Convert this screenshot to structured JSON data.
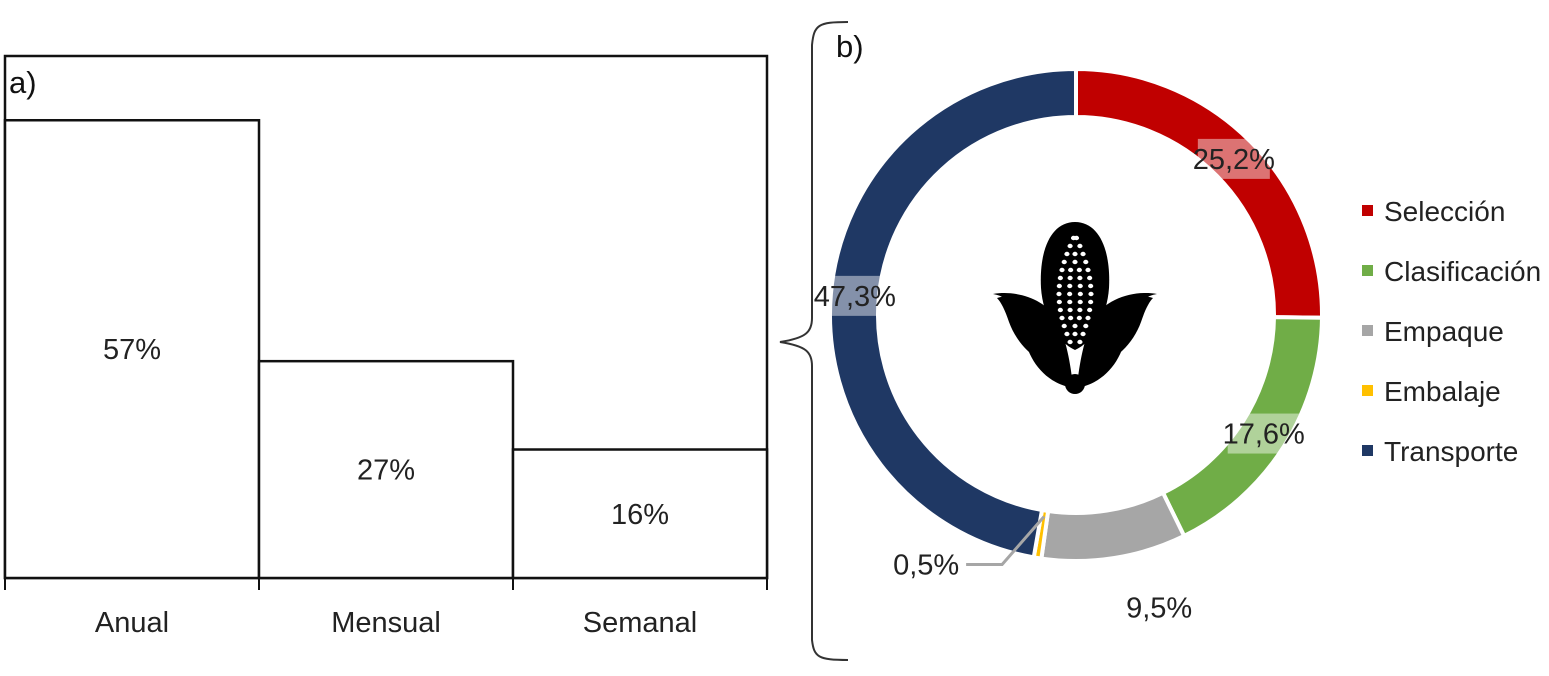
{
  "chart_data": [
    {
      "type": "bar",
      "panel_label": "a)",
      "categories": [
        "Anual",
        "Mensual",
        "Semanal"
      ],
      "values": [
        57,
        27,
        16
      ],
      "value_labels": [
        "57%",
        "27%",
        "16%"
      ],
      "ylim": [
        0,
        65
      ],
      "grid": false
    },
    {
      "type": "pie",
      "style": "donut",
      "panel_label": "b)",
      "labels": [
        "Selección",
        "Clasificación",
        "Empaque",
        "Embalaje",
        "Transporte"
      ],
      "values": [
        25.2,
        17.6,
        9.5,
        0.5,
        47.3
      ],
      "value_labels": [
        "25,2%",
        "17,6%",
        "9,5%",
        "0,5%",
        "47,3%"
      ],
      "colors": [
        "#c00000",
        "#70ad47",
        "#a6a6a6",
        "#ffc000",
        "#1f3864"
      ],
      "legend_position": "right",
      "center_icon": "corn-icon"
    }
  ]
}
